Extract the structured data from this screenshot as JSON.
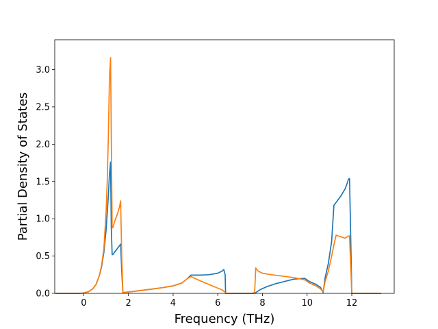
{
  "chart_data": {
    "type": "line",
    "title": "",
    "xlabel": "Frequency (THz)",
    "ylabel": "Partial Density of States",
    "xlim": [
      -1.3,
      13.9
    ],
    "ylim": [
      0.0,
      3.4
    ],
    "xticks": [
      0,
      2,
      4,
      6,
      8,
      10,
      12
    ],
    "xtick_labels": [
      "0",
      "2",
      "4",
      "6",
      "8",
      "10",
      "12"
    ],
    "yticks": [
      0.0,
      0.5,
      1.0,
      1.5,
      2.0,
      2.5,
      3.0
    ],
    "ytick_labels": [
      "0.0",
      "0.5",
      "1.0",
      "1.5",
      "2.0",
      "2.5",
      "3.0"
    ],
    "grid": false,
    "legend": "none",
    "series": [
      {
        "color": "#1f77b4",
        "x": [
          -1.25,
          -0.2,
          0.0,
          0.2,
          0.4,
          0.55,
          0.7,
          0.8,
          0.9,
          1.0,
          1.1,
          1.15,
          1.2,
          1.23,
          1.27,
          1.3,
          1.4,
          1.5,
          1.6,
          1.65,
          1.7,
          1.75,
          1.9,
          2.2,
          2.6,
          3.0,
          3.5,
          4.0,
          4.4,
          4.65,
          4.8,
          5.2,
          5.6,
          6.0,
          6.2,
          6.27,
          6.33,
          6.35,
          7.0,
          7.5,
          7.7,
          7.9,
          8.2,
          8.6,
          9.0,
          9.4,
          9.8,
          9.9,
          10.1,
          10.4,
          10.6,
          10.72,
          10.8,
          10.95,
          11.1,
          11.2,
          11.3,
          11.5,
          11.7,
          11.8,
          11.85,
          11.9,
          11.95,
          12.0,
          13.3
        ],
        "y": [
          0.0,
          0.0,
          0.005,
          0.02,
          0.06,
          0.12,
          0.24,
          0.36,
          0.55,
          0.85,
          1.3,
          1.6,
          1.76,
          0.9,
          0.52,
          0.52,
          0.56,
          0.6,
          0.64,
          0.66,
          0.3,
          0.01,
          0.015,
          0.025,
          0.04,
          0.055,
          0.075,
          0.1,
          0.14,
          0.2,
          0.245,
          0.245,
          0.25,
          0.27,
          0.3,
          0.32,
          0.25,
          0.0,
          0.0,
          0.0,
          0.01,
          0.05,
          0.09,
          0.13,
          0.16,
          0.19,
          0.2,
          0.2,
          0.16,
          0.12,
          0.08,
          0.01,
          0.2,
          0.4,
          0.7,
          1.18,
          1.22,
          1.3,
          1.4,
          1.48,
          1.53,
          1.54,
          0.8,
          0.0,
          0.0
        ]
      },
      {
        "color": "#ff7f0e",
        "x": [
          -1.25,
          -0.2,
          0.0,
          0.2,
          0.4,
          0.55,
          0.7,
          0.8,
          0.9,
          1.0,
          1.05,
          1.1,
          1.15,
          1.2,
          1.27,
          1.3,
          1.4,
          1.5,
          1.6,
          1.65,
          1.7,
          1.75,
          1.9,
          2.2,
          2.6,
          3.0,
          3.5,
          4.0,
          4.4,
          4.65,
          4.8,
          5.2,
          5.6,
          6.0,
          6.2,
          6.3,
          6.4,
          6.5,
          7.0,
          7.5,
          7.65,
          7.7,
          7.8,
          8.0,
          8.4,
          8.8,
          9.2,
          9.6,
          9.9,
          10.1,
          10.4,
          10.6,
          10.72,
          10.8,
          10.95,
          11.1,
          11.2,
          11.3,
          11.5,
          11.7,
          11.8,
          11.85,
          11.9,
          11.95,
          12.0,
          13.3
        ],
        "y": [
          0.0,
          0.0,
          0.005,
          0.02,
          0.06,
          0.12,
          0.24,
          0.38,
          0.6,
          1.1,
          1.5,
          2.1,
          2.9,
          3.16,
          0.88,
          0.88,
          0.98,
          1.06,
          1.16,
          1.24,
          0.5,
          0.01,
          0.015,
          0.025,
          0.04,
          0.055,
          0.075,
          0.1,
          0.14,
          0.2,
          0.225,
          0.17,
          0.12,
          0.07,
          0.045,
          0.02,
          0.0,
          0.0,
          0.0,
          0.0,
          0.0,
          0.34,
          0.3,
          0.27,
          0.25,
          0.235,
          0.22,
          0.2,
          0.18,
          0.14,
          0.1,
          0.06,
          0.02,
          0.15,
          0.3,
          0.5,
          0.65,
          0.78,
          0.76,
          0.74,
          0.76,
          0.77,
          0.77,
          0.4,
          0.0,
          0.0
        ]
      }
    ]
  }
}
